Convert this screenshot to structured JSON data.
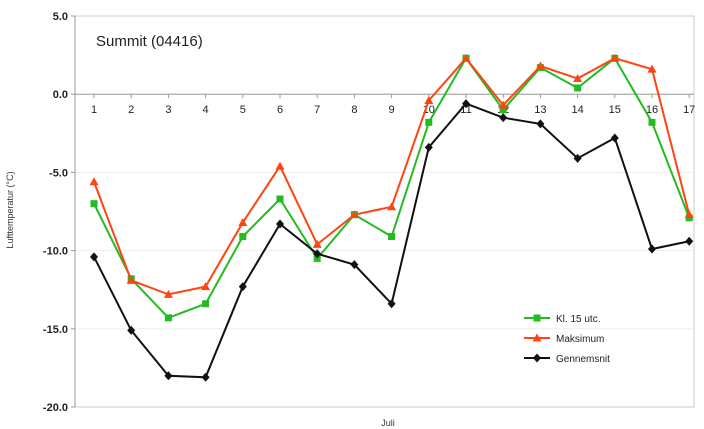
{
  "chart_data": {
    "type": "line",
    "title": "Summit (04416)",
    "xlabel": "Juli",
    "ylabel": "Lufttemperatur (°C)",
    "ylim": [
      -20,
      5
    ],
    "yticks": [
      5,
      0,
      -5,
      -10,
      -15,
      -20
    ],
    "ytick_labels": [
      "5.0",
      "0.0",
      "-5.0",
      "-10.0",
      "-15.0",
      "-20.0"
    ],
    "x": [
      1,
      2,
      3,
      4,
      5,
      6,
      7,
      8,
      9,
      10,
      11,
      12,
      13,
      14,
      15,
      16,
      17
    ],
    "legend_position": "lower-right",
    "series": [
      {
        "name": "Kl. 15 utc.",
        "color": "#22bb22",
        "marker": "square",
        "values": [
          -7.0,
          -11.8,
          -14.3,
          -13.4,
          -9.1,
          -6.7,
          -10.5,
          -7.7,
          -9.1,
          -1.8,
          2.3,
          -1.0,
          1.7,
          0.4,
          2.3,
          -1.8,
          -7.9
        ]
      },
      {
        "name": "Maksimum",
        "color": "#ff4411",
        "marker": "triangle",
        "values": [
          -5.6,
          -11.9,
          -12.8,
          -12.3,
          -8.2,
          -4.6,
          -9.6,
          -7.7,
          -7.2,
          -0.4,
          2.3,
          -0.7,
          1.8,
          1.0,
          2.3,
          1.6,
          -7.7
        ]
      },
      {
        "name": "Gennemsnit",
        "color": "#111111",
        "marker": "diamond",
        "values": [
          -10.4,
          -15.1,
          -18.0,
          -18.1,
          -12.3,
          -8.3,
          -10.2,
          -10.9,
          -13.4,
          -3.4,
          -0.6,
          -1.5,
          -1.9,
          -4.1,
          -2.8,
          -9.9,
          -9.4
        ]
      }
    ]
  }
}
